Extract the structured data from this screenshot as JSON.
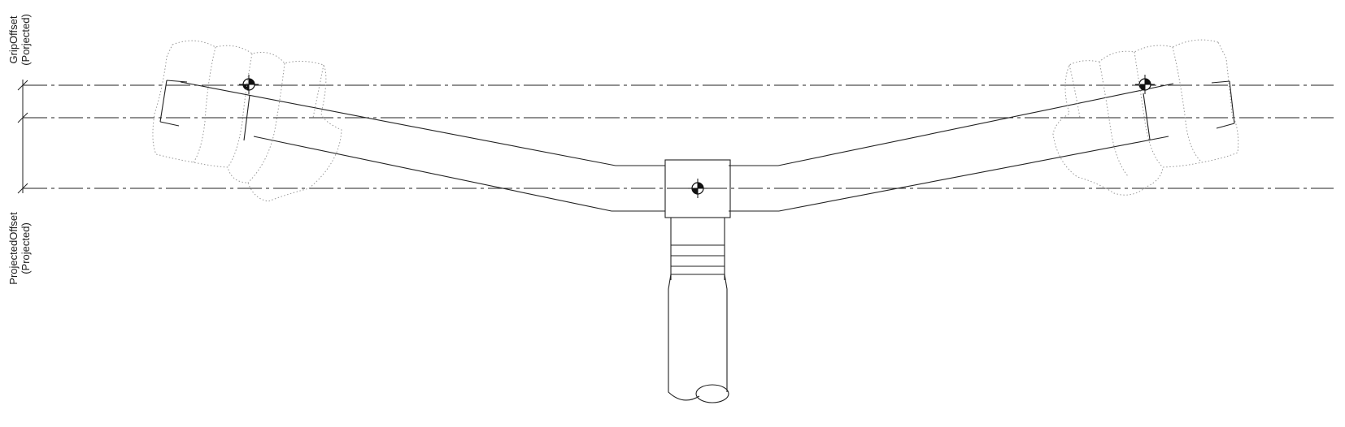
{
  "labels": {
    "grip_offset": "GripOffset",
    "grip_offset_sub": "(Porjected)",
    "projected_offset": "ProjectedOffset",
    "projected_offset_sub": "(Projected)"
  }
}
